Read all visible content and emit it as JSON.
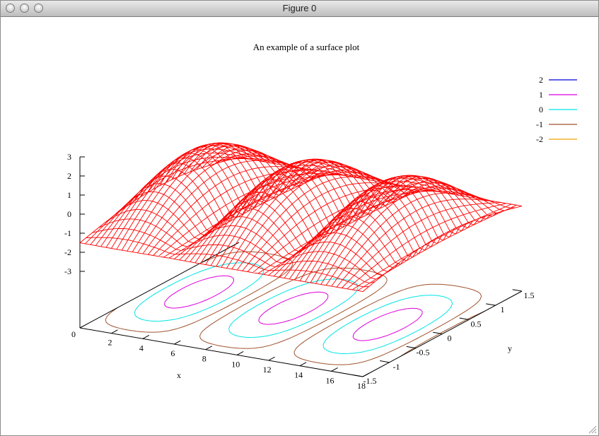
{
  "window": {
    "title": "Figure 0",
    "buttons": [
      "close-button",
      "minimize-button",
      "zoom-button"
    ]
  },
  "chart_data": {
    "type": "surface",
    "title": "An example of a surface plot",
    "xlabel": "x",
    "ylabel": "y",
    "zlabel": "",
    "x_ticks": [
      "2",
      "4",
      "6",
      "8",
      "10",
      "12",
      "14",
      "16",
      "18"
    ],
    "y_ticks": [
      "-1.5",
      "-1",
      "-0.5",
      "0",
      "0.5",
      "1",
      "1.5"
    ],
    "z_ticks": [
      "-3",
      "-2",
      "-1",
      "0",
      "1",
      "2",
      "3"
    ],
    "z_base_label": "0",
    "xlim": [
      0,
      18
    ],
    "ylim": [
      -1.5,
      1.5
    ],
    "zlim": [
      -3,
      3
    ],
    "surface_color": "#ff0000",
    "contour_levels": [
      {
        "label": "2",
        "value": 2,
        "color": "#0000dd"
      },
      {
        "label": "1",
        "value": 1,
        "color": "#dd00dd"
      },
      {
        "label": "0",
        "value": 0,
        "color": "#00e5e5"
      },
      {
        "label": "-1",
        "value": -1,
        "color": "#a0522d"
      },
      {
        "label": "-2",
        "value": -2,
        "color": "#f0a000"
      }
    ],
    "legend_position": "top-right"
  }
}
